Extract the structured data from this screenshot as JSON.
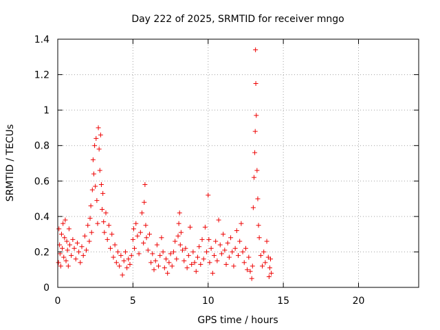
{
  "chart_data": {
    "type": "scatter",
    "title": "Day 222 of 2025, SRMTID for receiver mngo",
    "xlabel": "GPS time / hours",
    "ylabel": "SRMTID / TECUs",
    "xlim": [
      0,
      24
    ],
    "ylim": [
      0,
      1.4
    ],
    "x_ticks": [
      0,
      5,
      10,
      15,
      20
    ],
    "x_tick_labels": [
      "0",
      "5",
      "10",
      "15",
      "20"
    ],
    "y_ticks": [
      0,
      0.2,
      0.4,
      0.6,
      0.8,
      1.0,
      1.2,
      1.4
    ],
    "y_tick_labels": [
      "0",
      "0.2",
      "0.4",
      "0.6",
      "0.8",
      "1",
      "1.2",
      "1.4"
    ],
    "grid": true,
    "marker": "+",
    "color": "#ee0000",
    "series": [
      {
        "name": "SRMTID",
        "points": [
          [
            0.05,
            0.14
          ],
          [
            0.08,
            0.33
          ],
          [
            0.12,
            0.24
          ],
          [
            0.15,
            0.19
          ],
          [
            0.2,
            0.12
          ],
          [
            0.25,
            0.3
          ],
          [
            0.3,
            0.22
          ],
          [
            0.35,
            0.36
          ],
          [
            0.4,
            0.17
          ],
          [
            0.45,
            0.28
          ],
          [
            0.5,
            0.38
          ],
          [
            0.55,
            0.15
          ],
          [
            0.6,
            0.26
          ],
          [
            0.65,
            0.21
          ],
          [
            0.7,
            0.12
          ],
          [
            0.75,
            0.33
          ],
          [
            0.8,
            0.24
          ],
          [
            0.9,
            0.18
          ],
          [
            1.0,
            0.27
          ],
          [
            1.1,
            0.22
          ],
          [
            1.2,
            0.16
          ],
          [
            1.3,
            0.25
          ],
          [
            1.4,
            0.2
          ],
          [
            1.5,
            0.14
          ],
          [
            1.6,
            0.23
          ],
          [
            1.7,
            0.18
          ],
          [
            1.8,
            0.29
          ],
          [
            1.9,
            0.21
          ],
          [
            2.0,
            0.35
          ],
          [
            2.1,
            0.26
          ],
          [
            2.15,
            0.39
          ],
          [
            2.2,
            0.46
          ],
          [
            2.25,
            0.31
          ],
          [
            2.3,
            0.55
          ],
          [
            2.35,
            0.72
          ],
          [
            2.4,
            0.64
          ],
          [
            2.45,
            0.8
          ],
          [
            2.5,
            0.57
          ],
          [
            2.55,
            0.84
          ],
          [
            2.6,
            0.49
          ],
          [
            2.65,
            0.36
          ],
          [
            2.7,
            0.9
          ],
          [
            2.75,
            0.78
          ],
          [
            2.8,
            0.66
          ],
          [
            2.85,
            0.86
          ],
          [
            2.9,
            0.58
          ],
          [
            2.95,
            0.44
          ],
          [
            3.0,
            0.53
          ],
          [
            3.05,
            0.37
          ],
          [
            3.1,
            0.31
          ],
          [
            3.2,
            0.42
          ],
          [
            3.3,
            0.27
          ],
          [
            3.4,
            0.35
          ],
          [
            3.5,
            0.22
          ],
          [
            3.6,
            0.3
          ],
          [
            3.7,
            0.17
          ],
          [
            3.8,
            0.24
          ],
          [
            3.9,
            0.14
          ],
          [
            4.0,
            0.2
          ],
          [
            4.1,
            0.12
          ],
          [
            4.2,
            0.18
          ],
          [
            4.3,
            0.07
          ],
          [
            4.4,
            0.15
          ],
          [
            4.5,
            0.2
          ],
          [
            4.6,
            0.11
          ],
          [
            4.7,
            0.16
          ],
          [
            4.8,
            0.13
          ],
          [
            4.9,
            0.18
          ],
          [
            5.0,
            0.27
          ],
          [
            5.05,
            0.33
          ],
          [
            5.1,
            0.22
          ],
          [
            5.2,
            0.36
          ],
          [
            5.3,
            0.29
          ],
          [
            5.4,
            0.19
          ],
          [
            5.5,
            0.31
          ],
          [
            5.6,
            0.42
          ],
          [
            5.7,
            0.25
          ],
          [
            5.75,
            0.48
          ],
          [
            5.8,
            0.58
          ],
          [
            5.85,
            0.35
          ],
          [
            5.9,
            0.28
          ],
          [
            6.0,
            0.21
          ],
          [
            6.1,
            0.3
          ],
          [
            6.2,
            0.14
          ],
          [
            6.3,
            0.19
          ],
          [
            6.4,
            0.1
          ],
          [
            6.5,
            0.15
          ],
          [
            6.6,
            0.24
          ],
          [
            6.7,
            0.12
          ],
          [
            6.8,
            0.18
          ],
          [
            6.9,
            0.28
          ],
          [
            7.0,
            0.2
          ],
          [
            7.1,
            0.11
          ],
          [
            7.2,
            0.16
          ],
          [
            7.3,
            0.08
          ],
          [
            7.4,
            0.14
          ],
          [
            7.5,
            0.19
          ],
          [
            7.6,
            0.12
          ],
          [
            7.7,
            0.2
          ],
          [
            7.8,
            0.26
          ],
          [
            7.9,
            0.16
          ],
          [
            8.0,
            0.29
          ],
          [
            8.05,
            0.36
          ],
          [
            8.1,
            0.42
          ],
          [
            8.15,
            0.24
          ],
          [
            8.2,
            0.31
          ],
          [
            8.3,
            0.21
          ],
          [
            8.4,
            0.15
          ],
          [
            8.5,
            0.22
          ],
          [
            8.6,
            0.11
          ],
          [
            8.7,
            0.18
          ],
          [
            8.8,
            0.34
          ],
          [
            8.9,
            0.13
          ],
          [
            9.0,
            0.2
          ],
          [
            9.1,
            0.14
          ],
          [
            9.2,
            0.09
          ],
          [
            9.3,
            0.17
          ],
          [
            9.4,
            0.23
          ],
          [
            9.5,
            0.13
          ],
          [
            9.6,
            0.27
          ],
          [
            9.7,
            0.16
          ],
          [
            9.8,
            0.34
          ],
          [
            9.9,
            0.2
          ],
          [
            10.0,
            0.52
          ],
          [
            10.05,
            0.27
          ],
          [
            10.1,
            0.14
          ],
          [
            10.2,
            0.22
          ],
          [
            10.3,
            0.08
          ],
          [
            10.4,
            0.18
          ],
          [
            10.5,
            0.26
          ],
          [
            10.6,
            0.15
          ],
          [
            10.7,
            0.38
          ],
          [
            10.8,
            0.24
          ],
          [
            10.9,
            0.19
          ],
          [
            11.0,
            0.3
          ],
          [
            11.1,
            0.21
          ],
          [
            11.2,
            0.13
          ],
          [
            11.3,
            0.25
          ],
          [
            11.4,
            0.17
          ],
          [
            11.5,
            0.28
          ],
          [
            11.6,
            0.2
          ],
          [
            11.7,
            0.12
          ],
          [
            11.8,
            0.22
          ],
          [
            11.9,
            0.32
          ],
          [
            12.0,
            0.18
          ],
          [
            12.1,
            0.26
          ],
          [
            12.2,
            0.36
          ],
          [
            12.3,
            0.2
          ],
          [
            12.4,
            0.14
          ],
          [
            12.5,
            0.22
          ],
          [
            12.6,
            0.1
          ],
          [
            12.7,
            0.17
          ],
          [
            12.8,
            0.09
          ],
          [
            12.9,
            0.05
          ],
          [
            12.95,
            0.12
          ],
          [
            13.0,
            0.45
          ],
          [
            13.05,
            0.62
          ],
          [
            13.1,
            0.76
          ],
          [
            13.13,
            0.88
          ],
          [
            13.15,
            1.34
          ],
          [
            13.17,
            1.15
          ],
          [
            13.2,
            0.97
          ],
          [
            13.25,
            0.66
          ],
          [
            13.3,
            0.5
          ],
          [
            13.35,
            0.35
          ],
          [
            13.4,
            0.28
          ],
          [
            13.5,
            0.18
          ],
          [
            13.6,
            0.12
          ],
          [
            13.7,
            0.2
          ],
          [
            13.8,
            0.14
          ],
          [
            13.9,
            0.26
          ],
          [
            14.0,
            0.17
          ],
          [
            14.05,
            0.06
          ],
          [
            14.1,
            0.11
          ],
          [
            14.15,
            0.16
          ],
          [
            14.2,
            0.08
          ]
        ]
      }
    ]
  }
}
